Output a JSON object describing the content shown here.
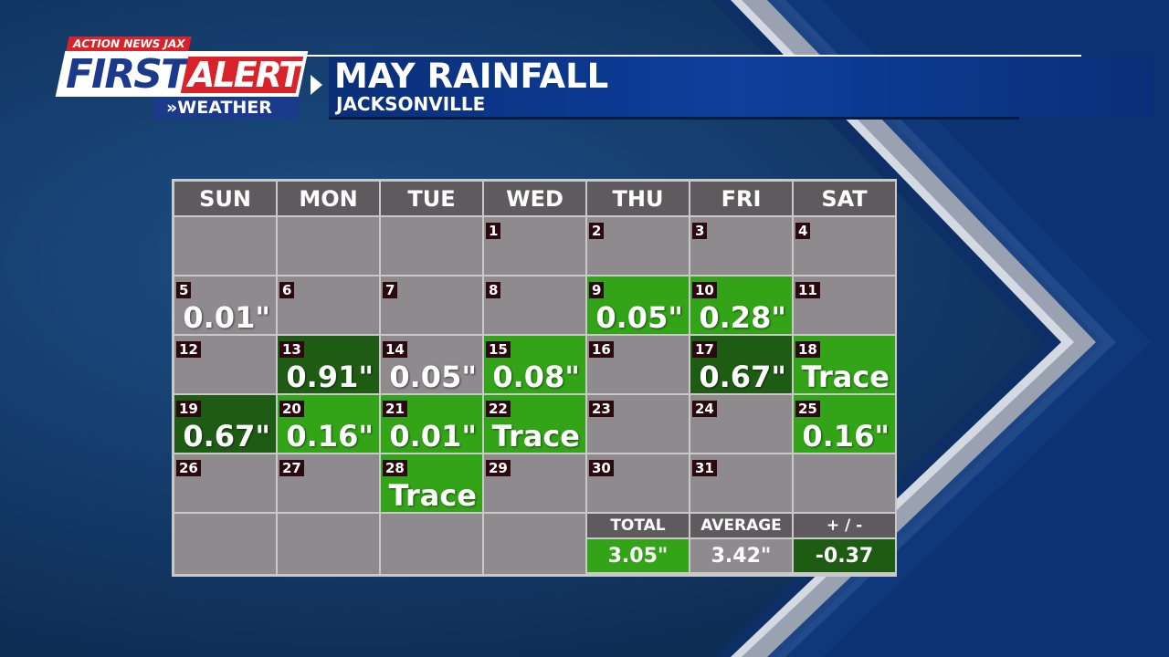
{
  "header": {
    "brand_top": "ACTION NEWS JAX",
    "brand_first": "FIRST",
    "brand_alert": "ALERT",
    "brand_weather": "WEATHER",
    "title": "MAY RAINFALL",
    "subtitle": "JACKSONVILLE"
  },
  "calendar": {
    "days": [
      "SUN",
      "MON",
      "TUE",
      "WED",
      "THU",
      "FRI",
      "SAT"
    ],
    "weeks": [
      [
        {
          "day": "",
          "rain": "",
          "shade": "none"
        },
        {
          "day": "",
          "rain": "",
          "shade": "none"
        },
        {
          "day": "",
          "rain": "",
          "shade": "none"
        },
        {
          "day": "1",
          "rain": "",
          "shade": "none"
        },
        {
          "day": "2",
          "rain": "",
          "shade": "none"
        },
        {
          "day": "3",
          "rain": "",
          "shade": "none"
        },
        {
          "day": "4",
          "rain": "",
          "shade": "none"
        }
      ],
      [
        {
          "day": "5",
          "rain": "0.01\"",
          "shade": "none"
        },
        {
          "day": "6",
          "rain": "",
          "shade": "none"
        },
        {
          "day": "7",
          "rain": "",
          "shade": "none"
        },
        {
          "day": "8",
          "rain": "",
          "shade": "none"
        },
        {
          "day": "9",
          "rain": "0.05\"",
          "shade": "light"
        },
        {
          "day": "10",
          "rain": "0.28\"",
          "shade": "light"
        },
        {
          "day": "11",
          "rain": "",
          "shade": "none"
        }
      ],
      [
        {
          "day": "12",
          "rain": "",
          "shade": "none"
        },
        {
          "day": "13",
          "rain": "0.91\"",
          "shade": "dark"
        },
        {
          "day": "14",
          "rain": "0.05\"",
          "shade": "none"
        },
        {
          "day": "15",
          "rain": "0.08\"",
          "shade": "light"
        },
        {
          "day": "16",
          "rain": "",
          "shade": "none"
        },
        {
          "day": "17",
          "rain": "0.67\"",
          "shade": "dark"
        },
        {
          "day": "18",
          "rain": "Trace",
          "shade": "light"
        }
      ],
      [
        {
          "day": "19",
          "rain": "0.67\"",
          "shade": "dark"
        },
        {
          "day": "20",
          "rain": "0.16\"",
          "shade": "light"
        },
        {
          "day": "21",
          "rain": "0.01\"",
          "shade": "light"
        },
        {
          "day": "22",
          "rain": "Trace",
          "shade": "light"
        },
        {
          "day": "23",
          "rain": "",
          "shade": "none"
        },
        {
          "day": "24",
          "rain": "",
          "shade": "none"
        },
        {
          "day": "25",
          "rain": "0.16\"",
          "shade": "light"
        }
      ],
      [
        {
          "day": "26",
          "rain": "",
          "shade": "none"
        },
        {
          "day": "27",
          "rain": "",
          "shade": "none"
        },
        {
          "day": "28",
          "rain": "Trace",
          "shade": "light"
        },
        {
          "day": "29",
          "rain": "",
          "shade": "none"
        },
        {
          "day": "30",
          "rain": "",
          "shade": "none"
        },
        {
          "day": "31",
          "rain": "",
          "shade": "none"
        },
        {
          "day": "",
          "rain": "",
          "shade": "none"
        }
      ]
    ]
  },
  "summary": {
    "total_label": "TOTAL",
    "total": "3.05\"",
    "average_label": "AVERAGE",
    "average": "3.42\"",
    "diff_label": "+ / -",
    "diff": "-0.37"
  },
  "colors": {
    "light_green": "#33a418",
    "dark_green": "#1e5c14",
    "cell_gray": "#8e8a8d",
    "header_gray": "#5e5a5d"
  }
}
